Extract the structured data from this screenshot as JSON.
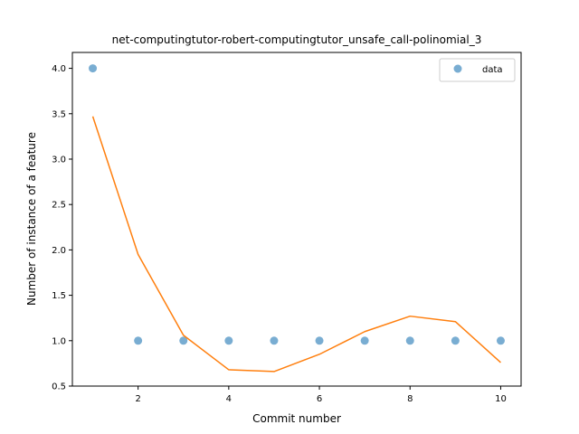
{
  "chart_data": {
    "type": "scatter",
    "title": "net-computingtutor-robert-computingtutor_unsafe_call-polinomial_3",
    "xlabel": "Commit number",
    "ylabel": "Number of instance of a feature",
    "xlim": [
      0.55,
      10.45
    ],
    "ylim": [
      0.5,
      4.175
    ],
    "xticks": [
      2,
      4,
      6,
      8,
      10
    ],
    "yticks": [
      0.5,
      1.0,
      1.5,
      2.0,
      2.5,
      3.0,
      3.5,
      4.0
    ],
    "ytick_labels": [
      "0.5",
      "1.0",
      "1.5",
      "2.0",
      "2.5",
      "3.0",
      "3.5",
      "4.0"
    ],
    "grid": false,
    "legend_position": "top-right",
    "series": [
      {
        "name": "data",
        "kind": "scatter",
        "color": "#1f77b4",
        "x": [
          1,
          2,
          3,
          4,
          5,
          6,
          7,
          8,
          9,
          10
        ],
        "y": [
          4,
          1,
          1,
          1,
          1,
          1,
          1,
          1,
          1,
          1
        ]
      },
      {
        "kind": "line",
        "color": "#ff7f0e",
        "x": [
          1,
          2,
          3,
          4,
          5,
          6,
          7,
          8,
          9,
          10
        ],
        "y": [
          3.47,
          1.95,
          1.06,
          0.68,
          0.66,
          0.85,
          1.1,
          1.27,
          1.21,
          0.76
        ]
      }
    ]
  }
}
